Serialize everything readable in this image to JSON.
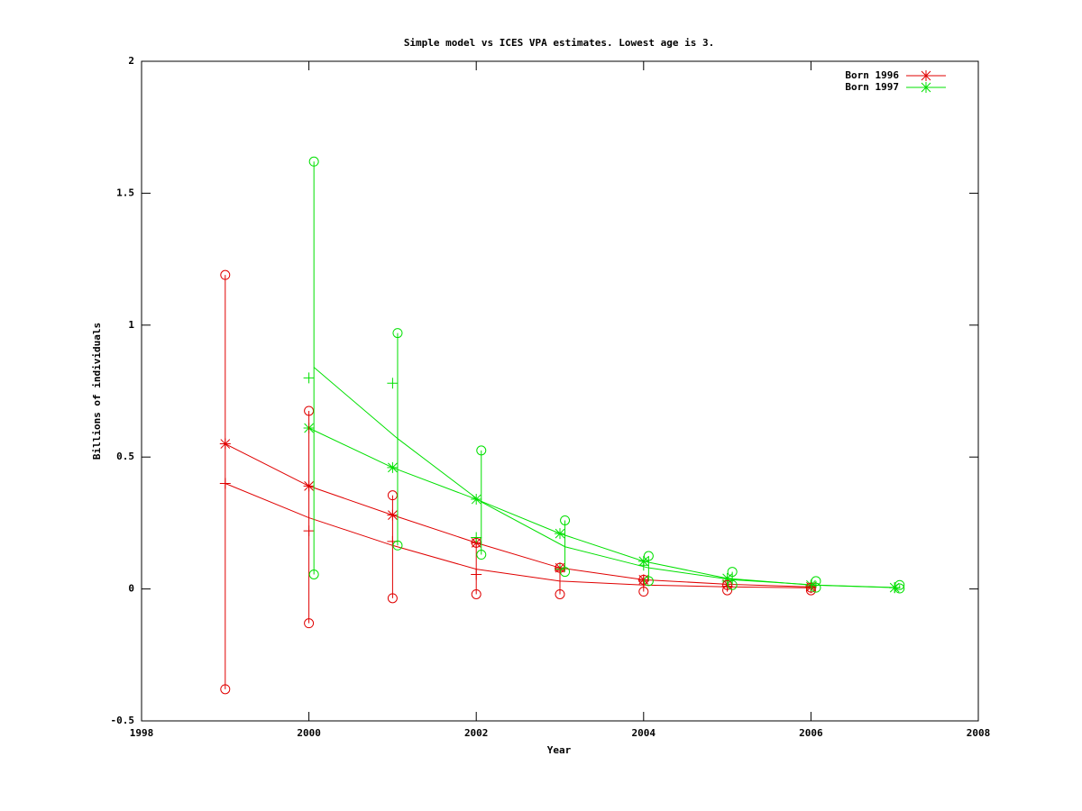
{
  "chart_data": {
    "type": "line",
    "title": "Simple model vs ICES VPA estimates. Lowest age is 3.",
    "xlabel": "Year",
    "ylabel": "Billions of individuals",
    "xlim": [
      1998,
      2008
    ],
    "ylim": [
      -0.5,
      2
    ],
    "xticks": [
      1998,
      2000,
      2002,
      2004,
      2006,
      2008
    ],
    "yticks": [
      -0.5,
      0,
      0.5,
      1,
      1.5,
      2
    ],
    "legend": "top-right",
    "series": [
      {
        "name": "Born 1996",
        "color": "#e00000",
        "line": true,
        "marker": "star",
        "x": [
          1999,
          2000,
          2001,
          2002,
          2003,
          2004,
          2005,
          2006
        ],
        "values": [
          0.55,
          0.39,
          0.28,
          0.175,
          0.08,
          0.035,
          0.018,
          0.008
        ]
      },
      {
        "name": "Born 1997",
        "color": "#00e000",
        "line": true,
        "marker": "star",
        "x": [
          2000,
          2001,
          2002,
          2003,
          2004,
          2005,
          2006,
          2007
        ],
        "values": [
          0.61,
          0.46,
          0.34,
          0.21,
          0.105,
          0.04,
          0.015,
          0.005
        ]
      },
      {
        "color": "#e00000",
        "line": true,
        "marker": "none",
        "x": [
          1999,
          2000,
          2001,
          2002,
          2003,
          2004,
          2005,
          2006
        ],
        "values": [
          0.4,
          0.27,
          0.165,
          0.075,
          0.03,
          0.015,
          0.008,
          0.004
        ]
      },
      {
        "color": "#00e000",
        "line": true,
        "marker": "none",
        "x": [
          2000.06,
          2001.06,
          2002.06,
          2003.06,
          2004.06,
          2005.06,
          2006.06,
          2007.06
        ],
        "values": [
          0.84,
          0.57,
          0.33,
          0.16,
          0.08,
          0.035,
          0.015,
          0.005
        ]
      },
      {
        "color": "#e00000",
        "line": false,
        "marker": "plus",
        "x": [
          1999,
          2000,
          2001,
          2002,
          2003,
          2004,
          2005,
          2006
        ],
        "values": [
          0.4,
          0.22,
          0.18,
          0.055,
          0.07,
          0.03,
          0.01,
          0.005
        ]
      },
      {
        "color": "#00e000",
        "line": false,
        "marker": "plus",
        "x": [
          2000,
          2001,
          2002,
          2003,
          2004,
          2005,
          2006,
          2007
        ],
        "values": [
          0.8,
          0.78,
          0.195,
          0.075,
          0.09,
          0.03,
          0.01,
          0.005
        ]
      },
      {
        "color": "#e00000",
        "line": false,
        "marker": "errorbar",
        "x": [
          1999,
          2000,
          2001,
          2002,
          2003,
          2004,
          2005,
          2006
        ],
        "low": [
          -0.38,
          -0.13,
          -0.035,
          -0.02,
          -0.02,
          -0.01,
          -0.005,
          -0.005
        ],
        "high": [
          1.19,
          0.675,
          0.355,
          0.175,
          0.08,
          0.035,
          0.015,
          0.005
        ]
      },
      {
        "color": "#00e000",
        "line": false,
        "marker": "errorbar",
        "x": [
          2000.06,
          2001.06,
          2002.06,
          2003.06,
          2004.06,
          2005.06,
          2006.06,
          2007.06
        ],
        "low": [
          0.055,
          0.165,
          0.13,
          0.065,
          0.03,
          0.015,
          0.005,
          0.002
        ],
        "high": [
          1.62,
          0.97,
          0.525,
          0.26,
          0.125,
          0.065,
          0.03,
          0.015
        ]
      }
    ]
  }
}
